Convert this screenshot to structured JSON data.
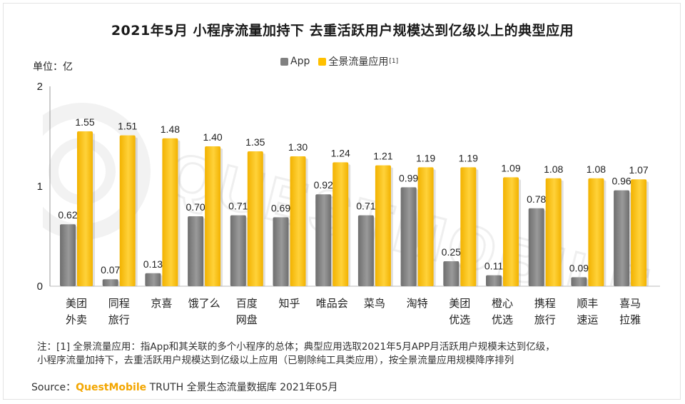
{
  "title": "2021年5月 小程序流量加持下 去重活跃用户规模达到亿级以上的典型应用",
  "unit_label": "单位：亿",
  "legend": [
    {
      "name": "App",
      "color": "#808080",
      "sup": ""
    },
    {
      "name": "全景流量应用",
      "color": "#ffc000",
      "sup": "[1]"
    }
  ],
  "watermark": "QUESTMOBILE",
  "chart_data": {
    "type": "bar",
    "categories": [
      [
        "美团",
        "外卖"
      ],
      [
        "同程",
        "旅行"
      ],
      [
        "京喜"
      ],
      [
        "饿了么"
      ],
      [
        "百度",
        "网盘"
      ],
      [
        "知乎"
      ],
      [
        "唯品会"
      ],
      [
        "菜鸟"
      ],
      [
        "淘特"
      ],
      [
        "美团",
        "优选"
      ],
      [
        "橙心",
        "优选"
      ],
      [
        "携程",
        "旅行"
      ],
      [
        "顺丰",
        "速运"
      ],
      [
        "喜马",
        "拉雅"
      ]
    ],
    "series": [
      {
        "name": "App",
        "color": "#808080",
        "values": [
          0.62,
          0.07,
          0.13,
          0.7,
          0.71,
          0.69,
          0.92,
          0.71,
          0.99,
          0.25,
          0.11,
          0.78,
          0.09,
          0.96
        ]
      },
      {
        "name": "全景流量应用",
        "color": "#ffc000",
        "values": [
          1.55,
          1.51,
          1.48,
          1.4,
          1.35,
          1.3,
          1.24,
          1.21,
          1.19,
          1.19,
          1.09,
          1.08,
          1.08,
          1.07
        ]
      }
    ],
    "y_ticks": [
      "0",
      "1",
      "2"
    ],
    "ylim": [
      0,
      2
    ],
    "grid": false,
    "legend_position": "top"
  },
  "note": {
    "line1": "注：[1] 全景流量应用：指App和其关联的多个小程序的总体；典型应用选取2021年5月APP月活跃用户规模未达到亿级，",
    "line2": "小程序流量加持下，去重活跃用户规模达到亿级以上应用（已剔除纯工具类应用），按全景流量应用规模降序排列"
  },
  "source": {
    "prefix": "Source：",
    "brand": "QuestMobile",
    "rest": " TRUTH 全景生态流量数据库 2021年05月"
  }
}
